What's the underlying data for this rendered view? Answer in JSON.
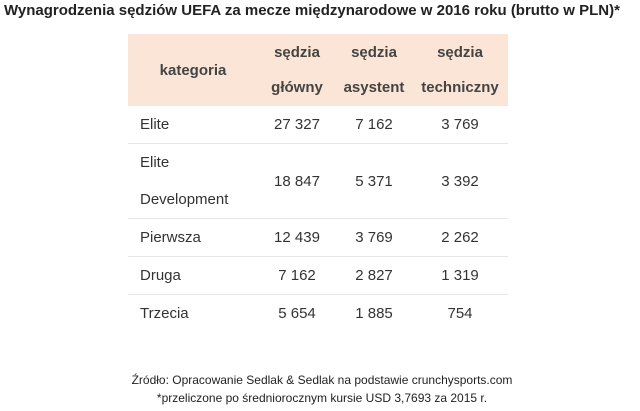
{
  "title": "Wynagrodzenia sędziów UEFA za mecze międzynarodowe w 2016 roku (brutto w PLN)*",
  "table": {
    "header": [
      [
        "kategoria"
      ],
      [
        "sędzia",
        "główny"
      ],
      [
        "sędzia",
        "asystent"
      ],
      [
        "sędzia",
        "techniczny"
      ]
    ],
    "rows": [
      {
        "category": [
          "Elite"
        ],
        "values": [
          "27 327",
          "7 162",
          "3 769"
        ]
      },
      {
        "category": [
          "Elite",
          "Development"
        ],
        "values": [
          "18 847",
          "5 371",
          "3 392"
        ]
      },
      {
        "category": [
          "Pierwsza"
        ],
        "values": [
          "12 439",
          "3 769",
          "2 262"
        ]
      },
      {
        "category": [
          "Druga"
        ],
        "values": [
          "7 162",
          "2 827",
          "1 319"
        ]
      },
      {
        "category": [
          "Trzecia"
        ],
        "values": [
          "5 654",
          "1 885",
          "754"
        ]
      }
    ]
  },
  "footnotes": [
    "Źródło: Opracowanie Sedlak & Sedlak na podstawie crunchysports.com",
    "*przeliczone po średniorocznym kursie USD 3,7693 za 2015 r."
  ]
}
